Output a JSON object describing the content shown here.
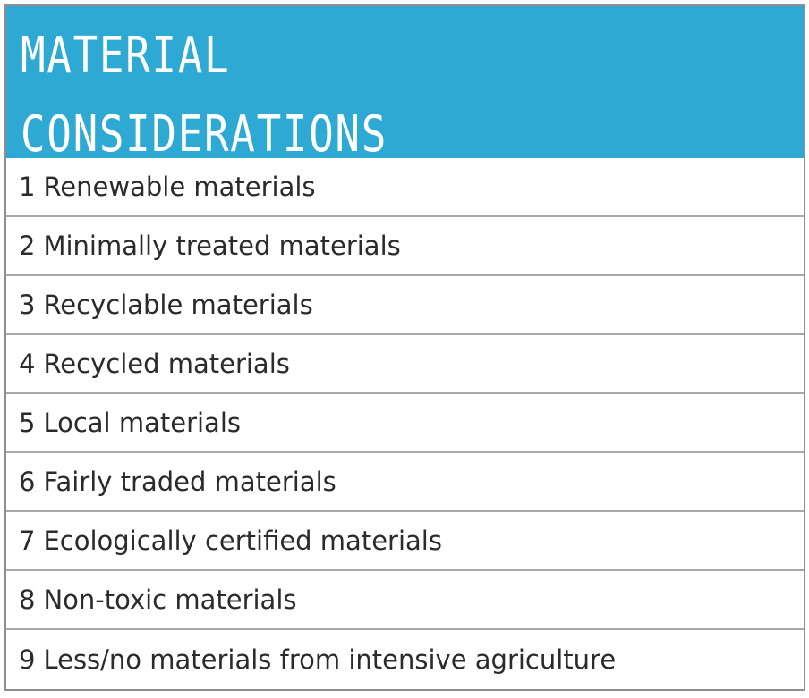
{
  "header": {
    "title_line1": "MATERIAL",
    "title_line2": "CONSIDERATIONS"
  },
  "colors": {
    "header_background": "#2ea9d4",
    "header_text": "#ffffff",
    "row_text": "#2b2b2b",
    "border": "#8f8f8f"
  },
  "items": [
    {
      "number": "1",
      "label": "Renewable materials"
    },
    {
      "number": "2",
      "label": "Minimally treated materials"
    },
    {
      "number": "3",
      "label": "Recyclable materials"
    },
    {
      "number": "4",
      "label": "Recycled materials"
    },
    {
      "number": "5",
      "label": "Local materials"
    },
    {
      "number": "6",
      "label": "Fairly traded materials"
    },
    {
      "number": "7",
      "label": "Ecologically certified materials"
    },
    {
      "number": "8",
      "label": "Non-toxic materials"
    },
    {
      "number": "9",
      "label": "Less/no materials from intensive agriculture"
    }
  ]
}
